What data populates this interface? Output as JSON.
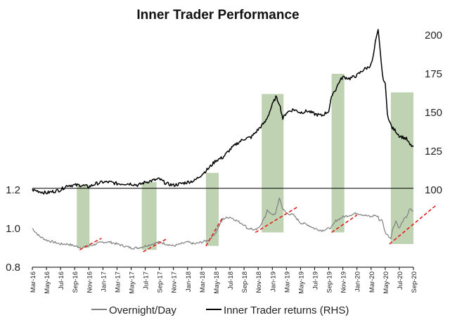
{
  "chart_data": {
    "type": "line",
    "title": "Inner Trader Performance",
    "x_tick_labels": [
      "Mar-16",
      "May-16",
      "Jul-16",
      "Sep-16",
      "Nov-16",
      "Jan-17",
      "Mar-17",
      "May-17",
      "Jul-17",
      "Sep-17",
      "Nov-17",
      "Jan-18",
      "Mar-18",
      "May-18",
      "Jul-18",
      "Sep-18",
      "Nov-18",
      "Jan-19",
      "Mar-19",
      "May-19",
      "Jul-19",
      "Sep-19",
      "Nov-19",
      "Jan-20",
      "Mar-20",
      "May-20",
      "Jul-20",
      "Sep-20"
    ],
    "x_range_months": [
      0,
      54
    ],
    "left_axis": {
      "label": "",
      "ylim": [
        0.8,
        1.3
      ],
      "ticks": [
        "0.8",
        "1.0",
        "1.2"
      ],
      "tick_values": [
        0.8,
        1.0,
        1.2
      ]
    },
    "right_axis": {
      "label": "",
      "ylim": [
        50,
        205
      ],
      "ticks": [
        "100",
        "125",
        "150",
        "175",
        "200"
      ],
      "tick_values": [
        100,
        125,
        150,
        175,
        200
      ]
    },
    "reference_line": {
      "axis": "right",
      "value": 101
    },
    "shaded_periods": [
      {
        "start": 6.3,
        "end": 8.1,
        "top_rhs": 103,
        "bottom_lhs": 0.9
      },
      {
        "start": 15.5,
        "end": 17.6,
        "top_rhs": 105,
        "bottom_lhs": 0.89
      },
      {
        "start": 24.6,
        "end": 26.4,
        "top_rhs": 111,
        "bottom_lhs": 0.91
      },
      {
        "start": 32.5,
        "end": 35.6,
        "top_rhs": 162,
        "bottom_lhs": 0.98
      },
      {
        "start": 42.4,
        "end": 44.2,
        "top_rhs": 175,
        "bottom_lhs": 0.98
      },
      {
        "start": 50.8,
        "end": 54.0,
        "top_rhs": 163,
        "bottom_lhs": 0.92
      }
    ],
    "trend_annotations": [
      {
        "x0": 6.7,
        "y0": 0.89,
        "x1": 9.8,
        "y1": 0.95
      },
      {
        "x0": 15.7,
        "y0": 0.88,
        "x1": 19.2,
        "y1": 0.95
      },
      {
        "x0": 24.6,
        "y0": 0.91,
        "x1": 27.0,
        "y1": 1.06
      },
      {
        "x0": 31.6,
        "y0": 0.98,
        "x1": 37.5,
        "y1": 1.11
      },
      {
        "x0": 42.4,
        "y0": 0.98,
        "x1": 46.0,
        "y1": 1.07
      },
      {
        "x0": 50.6,
        "y0": 0.92,
        "x1": 57.2,
        "y1": 1.12
      }
    ],
    "series": [
      {
        "name": "Overnight/Day",
        "axis": "left",
        "color": "#7f7f7f",
        "x": [
          0,
          0.5,
          1,
          1.5,
          2,
          3,
          4,
          5,
          6,
          7,
          8,
          9,
          10,
          11,
          12,
          13,
          14,
          15,
          16,
          17,
          18,
          19,
          20,
          21,
          22,
          23,
          24,
          25,
          26,
          27,
          28,
          29,
          30,
          30.5,
          31,
          31.5,
          32,
          32.5,
          33,
          33.3,
          33.6,
          34,
          34.5,
          35,
          35.5,
          36,
          37,
          38,
          39,
          40,
          41,
          42,
          42.5,
          43,
          44,
          45,
          46,
          47,
          48,
          48.5,
          49,
          49.2,
          49.5,
          50,
          50.5,
          50.8,
          51,
          51.5,
          52,
          52.5,
          53,
          53.5,
          54
        ],
        "values": [
          1.0,
          0.98,
          0.96,
          0.95,
          0.94,
          0.93,
          0.92,
          0.92,
          0.91,
          0.9,
          0.91,
          0.92,
          0.93,
          0.93,
          0.92,
          0.91,
          0.9,
          0.9,
          0.91,
          0.92,
          0.93,
          0.92,
          0.91,
          0.92,
          0.93,
          0.92,
          0.93,
          0.94,
          0.98,
          1.05,
          1.06,
          1.04,
          1.02,
          1.0,
          1.0,
          0.99,
          1.0,
          1.03,
          1.06,
          1.1,
          1.08,
          1.07,
          1.08,
          1.16,
          1.1,
          1.08,
          1.07,
          1.03,
          1.02,
          1.0,
          0.99,
          1.0,
          1.01,
          1.04,
          1.06,
          1.07,
          1.08,
          1.07,
          1.06,
          1.07,
          1.06,
          1.04,
          1.05,
          0.98,
          0.96,
          0.95,
          0.99,
          1.04,
          1.0,
          1.04,
          1.06,
          1.1,
          1.09
        ]
      },
      {
        "name": "Inner Trader returns (RHS)",
        "axis": "right",
        "color": "#000000",
        "x": [
          0,
          1,
          2,
          3,
          4,
          5,
          6,
          7,
          8,
          9,
          10,
          11,
          12,
          13,
          14,
          15,
          16,
          17,
          18,
          19,
          20,
          21,
          22,
          23,
          24,
          25,
          26,
          27,
          28,
          29,
          30,
          31,
          32,
          33,
          33.5,
          34,
          34.5,
          35,
          35.5,
          36,
          37,
          38,
          39,
          40,
          41,
          42,
          42.5,
          43,
          43.5,
          44,
          45,
          46,
          46.5,
          47,
          47.5,
          48,
          48.3,
          48.6,
          49,
          49.3,
          49.6,
          50,
          50.3,
          50.6,
          51,
          51.5,
          52,
          52.5,
          53,
          53.5,
          54
        ],
        "values": [
          100,
          99,
          98,
          99,
          100,
          103,
          103,
          103,
          102,
          104,
          105,
          105,
          104,
          104,
          104,
          103,
          105,
          106,
          107,
          104,
          103,
          104,
          105,
          106,
          110,
          114,
          119,
          121,
          126,
          130,
          133,
          134,
          139,
          144,
          149,
          155,
          160,
          156,
          146,
          150,
          152,
          150,
          151,
          149,
          148,
          151,
          162,
          165,
          170,
          173,
          172,
          174,
          176,
          178,
          179,
          181,
          186,
          195,
          203,
          190,
          174,
          168,
          150,
          144,
          140,
          138,
          135,
          134,
          133,
          129,
          128
        ]
      }
    ],
    "legend": [
      "Overnight/Day",
      "Inner Trader returns (RHS)"
    ],
    "legend_position": "bottom",
    "colors": {
      "shade": "#a9c49a",
      "trend": "#e0201c",
      "reference": "#000000"
    }
  }
}
